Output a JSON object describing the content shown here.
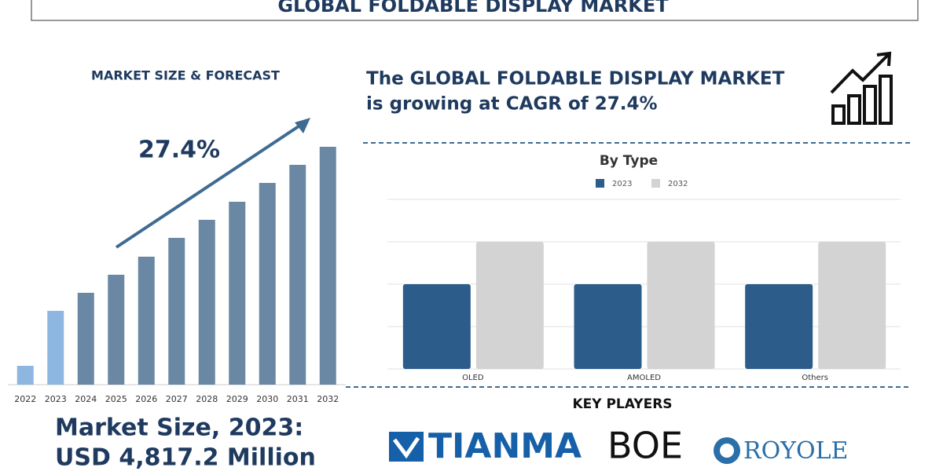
{
  "header": {
    "title": "GLOBAL FOLDABLE DISPLAY MARKET"
  },
  "chart_data": [
    {
      "type": "bar",
      "title": "MARKET SIZE & FORECAST",
      "annotation": "27.4%",
      "categories": [
        "2022",
        "2023",
        "2024",
        "2025",
        "2026",
        "2027",
        "2028",
        "2029",
        "2030",
        "2031",
        "2032"
      ],
      "values": [
        24,
        94,
        117,
        140,
        163,
        187,
        210,
        233,
        257,
        280,
        303
      ],
      "colors": [
        "#8db6e0",
        "#8db6e0",
        "#6a88a4",
        "#6a88a4",
        "#6a88a4",
        "#6a88a4",
        "#6a88a4",
        "#6a88a4",
        "#6a88a4",
        "#6a88a4",
        "#6a88a4"
      ],
      "ylim": [
        0,
        310
      ]
    },
    {
      "type": "grouped-bar",
      "title": "By Type",
      "categories": [
        "OLED",
        "AMOLED",
        "Others"
      ],
      "series": [
        {
          "name": "2023",
          "color": "#2b5c8a",
          "values": [
            2,
            2,
            2
          ]
        },
        {
          "name": "2032",
          "color": "#d3d3d3",
          "values": [
            3,
            3,
            3
          ]
        }
      ],
      "ylim": [
        0,
        4
      ],
      "yticks": [
        0,
        1,
        2,
        3,
        4
      ],
      "grid": true,
      "show_tick_labels": false
    }
  ],
  "summary": {
    "line1": "The GLOBAL FOLDABLE DISPLAY MARKET",
    "line2": "is growing at CAGR of 27.4%"
  },
  "market_size": {
    "line1": "Market Size, 2023:",
    "line2": "USD 4,817.2 Million"
  },
  "key_players": {
    "title": "KEY PLAYERS",
    "logos": [
      "TIANMA",
      "BOE",
      "ROYOLE"
    ]
  }
}
